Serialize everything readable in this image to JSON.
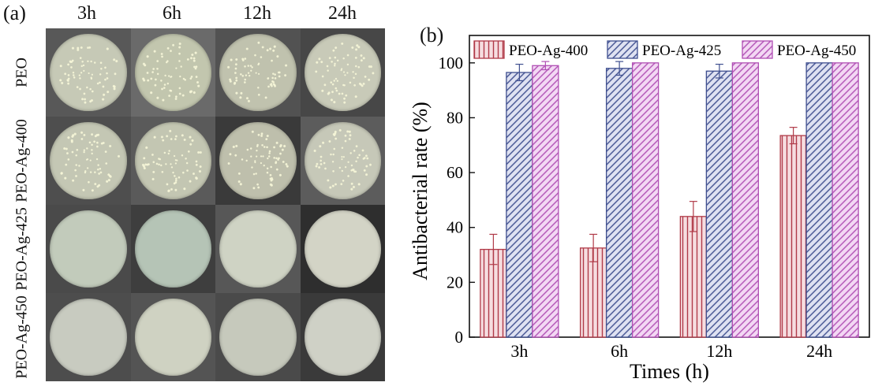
{
  "panel_a": {
    "label": "(a)",
    "time_points": [
      "3h",
      "6h",
      "12h",
      "24h"
    ],
    "samples": [
      "PEO",
      "PEO-Ag-400",
      "PEO-Ag-425",
      "PEO-Ag-450"
    ]
  },
  "panel_b": {
    "label": "(b)"
  },
  "chart_data": {
    "type": "bar",
    "title": "",
    "xlabel": "Times (h)",
    "ylabel": "Antibacterial rate (%)",
    "ylim": [
      0,
      110
    ],
    "yticks": [
      0,
      20,
      40,
      60,
      80,
      100
    ],
    "categories": [
      "3h",
      "6h",
      "12h",
      "24h"
    ],
    "legend_position": "top",
    "series": [
      {
        "name": "PEO-Ag-400",
        "values": [
          32,
          32.5,
          44,
          73.5
        ],
        "errors": [
          5.5,
          5,
          5.5,
          3
        ],
        "color": "#b03a48",
        "fill": "#f6dde0",
        "pattern": "vertical"
      },
      {
        "name": "PEO-Ag-425",
        "values": [
          96.5,
          98,
          97,
          100
        ],
        "errors": [
          3,
          2.5,
          2.5,
          0
        ],
        "color": "#3f4f8f",
        "fill": "#dfe2f2",
        "pattern": "diagonal"
      },
      {
        "name": "PEO-Ag-450",
        "values": [
          99,
          100,
          100,
          100
        ],
        "errors": [
          1.5,
          0,
          0,
          0
        ],
        "color": "#b04fb4",
        "fill": "#f3d8f4",
        "pattern": "diagonal"
      }
    ]
  }
}
